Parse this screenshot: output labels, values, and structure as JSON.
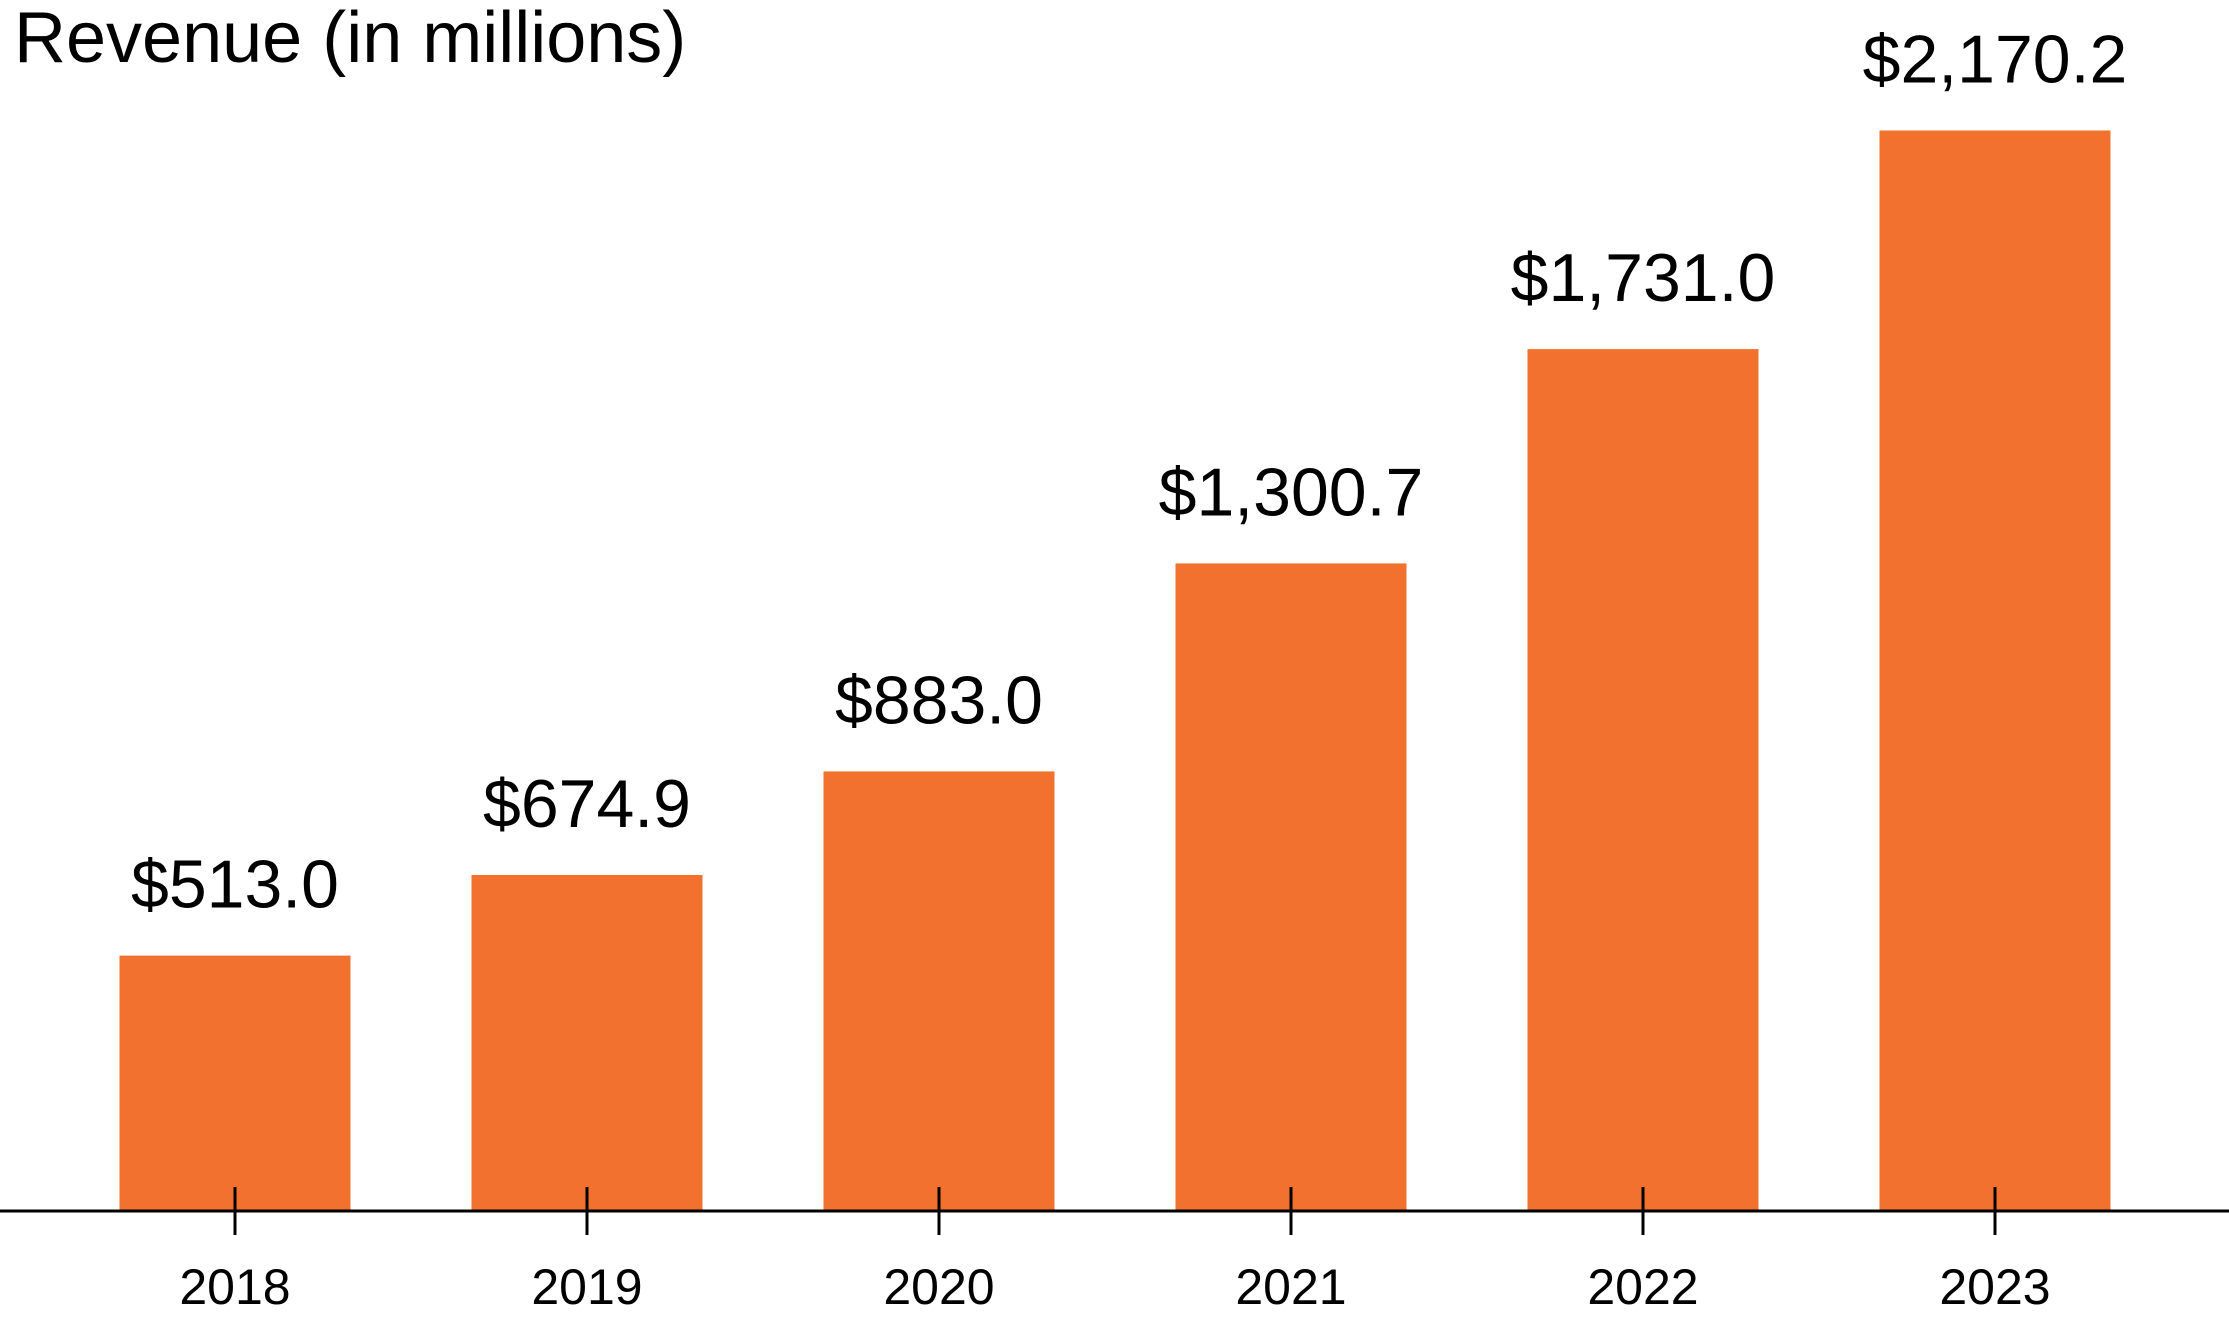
{
  "chart_data": {
    "type": "bar",
    "title": "Revenue (in millions)",
    "xlabel": "",
    "ylabel": "",
    "categories": [
      "2018",
      "2019",
      "2020",
      "2021",
      "2022",
      "2023"
    ],
    "values": [
      513.0,
      674.9,
      883.0,
      1300.7,
      1731.0,
      2170.2
    ],
    "value_labels": [
      "$513.0",
      "$674.9",
      "$883.0",
      "$1,300.7",
      "$1,731.0",
      "$2,170.2"
    ],
    "ylim": [
      0,
      2200
    ],
    "grid": false,
    "bar_color": "#F2712E",
    "axis_color": "#000000",
    "text_color": "#000000"
  }
}
